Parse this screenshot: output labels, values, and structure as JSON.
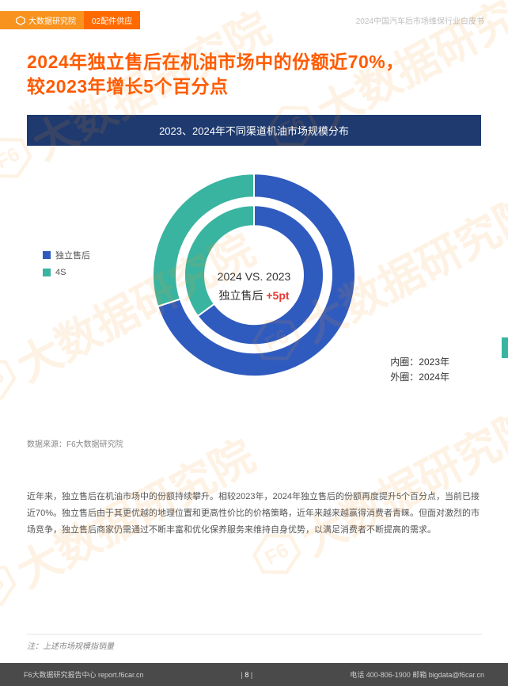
{
  "header": {
    "tab1_icon_label": "大数据研究院",
    "tab2": "02配件供应",
    "right": "2024中国汽车后市场维保行业白皮书"
  },
  "title_line1": "2024年独立售后在机油市场中的份额近70%，",
  "title_line2": "较2023年增长5个百分点",
  "chart": {
    "header": "2023、2024年不同渠道机油市场规模分布",
    "type": "double-donut",
    "legend": [
      {
        "label": "独立售后",
        "color": "#2f5bbf"
      },
      {
        "label": "4S",
        "color": "#39b4a0"
      }
    ],
    "outer_ring": {
      "year": "2024",
      "independent": 70,
      "fours": 30
    },
    "inner_ring": {
      "year": "2023",
      "independent": 65,
      "fours": 35
    },
    "center_line1": "2024 VS. 2023",
    "center_line2_a": "独立售后 ",
    "center_line2_b": "+5pt",
    "ring_note_1": "内圈：2023年",
    "ring_note_2": "外圈：2024年",
    "radius_outer": 128,
    "thickness_outer": 30,
    "radius_inner": 88,
    "thickness_inner": 26,
    "background_color": "#ffffff"
  },
  "data_source": "数据来源：F6大数据研究院",
  "paragraph": "近年来，独立售后在机油市场中的份额持续攀升。相较2023年，2024年独立售后的份额再度提升5个百分点，当前已接近70%。独立售后由于其更优越的地理位置和更高性价比的价格策略，近年来越来越赢得消费者青睐。但面对激烈的市场竞争，独立售后商家仍需通过不断丰富和优化保养服务来维持自身优势，以满足消费者不断提高的需求。",
  "foot_note": "注：上述市场规模指销量",
  "footer": {
    "left": "F6大数据研究报告中心 report.f6car.cn",
    "page": "8",
    "right": "电话 400-806-1900  邮箱 bigdata@f6car.cn"
  },
  "watermark_text": "大数据研究院",
  "colors": {
    "brand_orange": "#f7931e",
    "title_orange": "#ff5a00",
    "chart_header_bg": "#1e3a6f",
    "footer_bg": "#4a4a4a",
    "independent": "#2f5bbf",
    "fours": "#39b4a0",
    "highlight_red": "#e53935"
  }
}
